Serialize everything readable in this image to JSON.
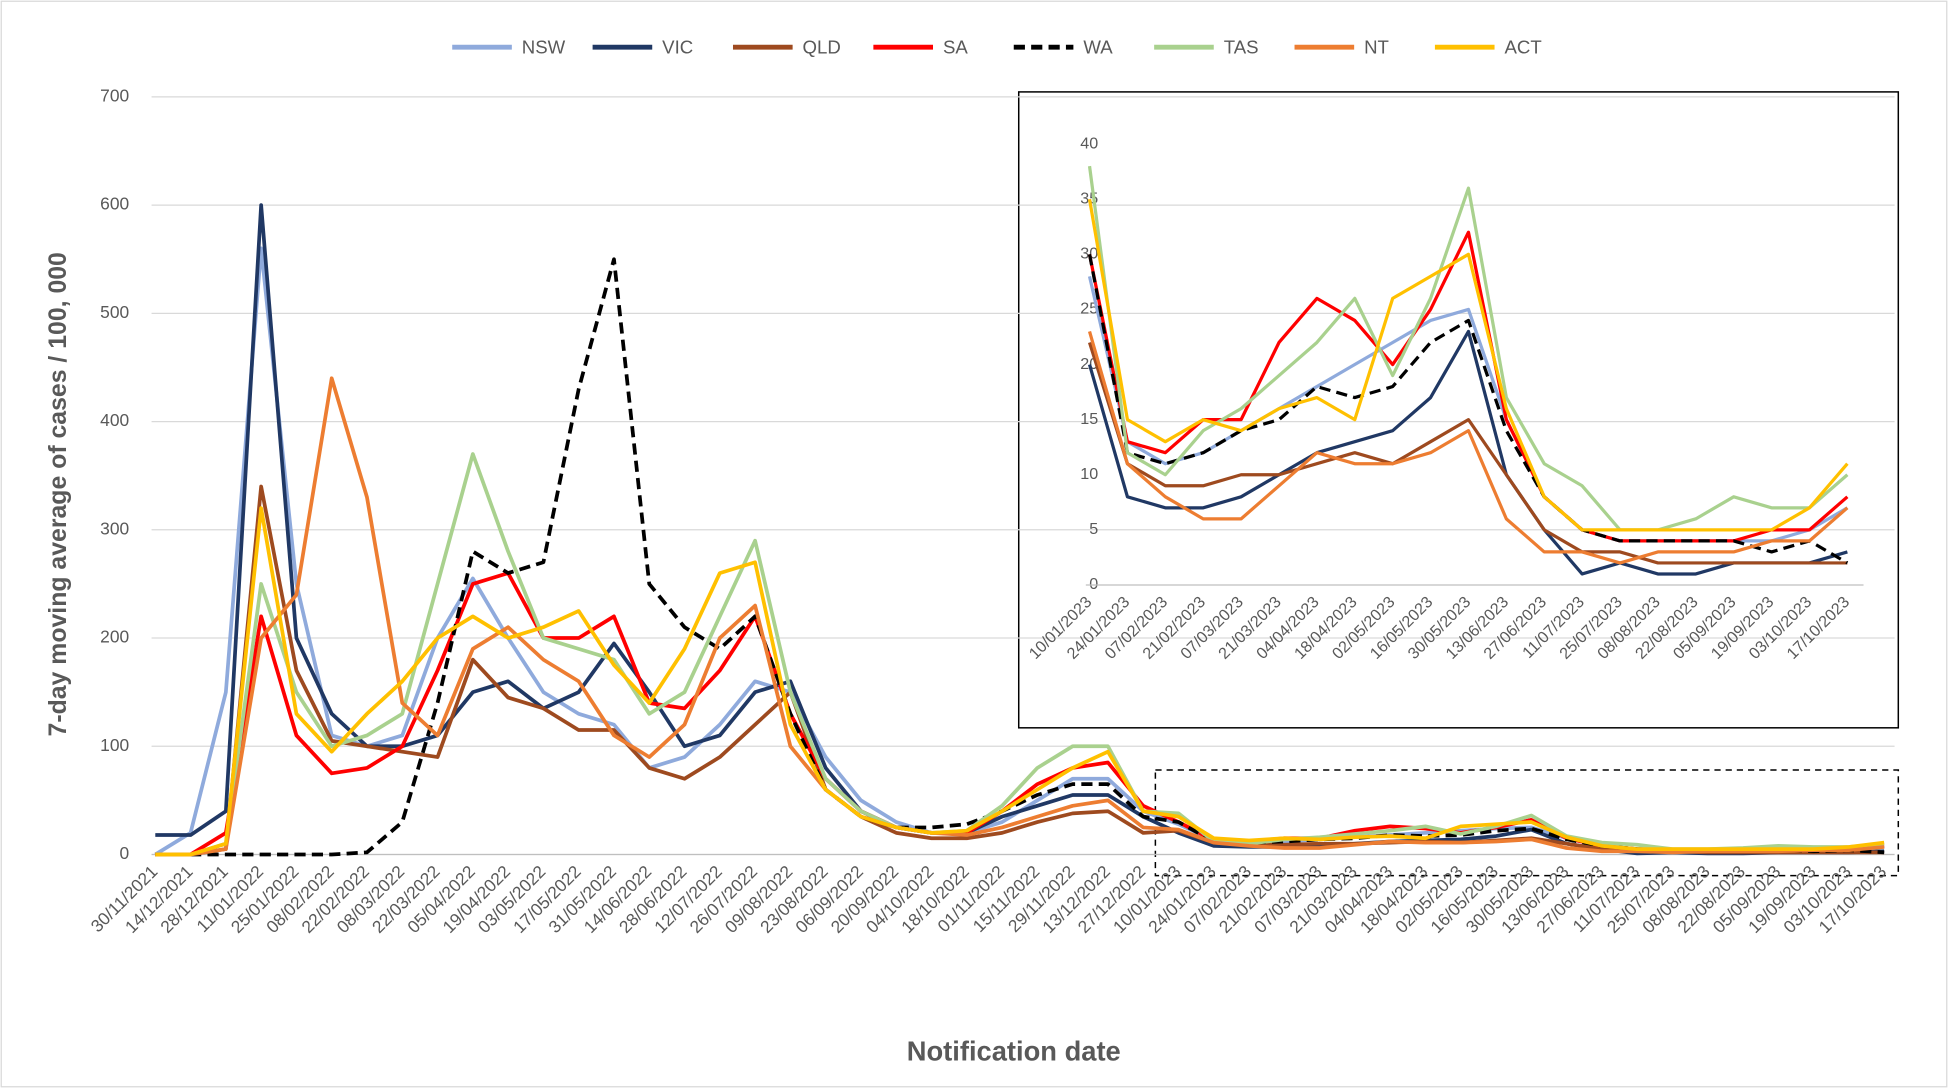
{
  "chart_data": [
    {
      "type": "line",
      "y_label": "7-day moving average of cases / 100, 000",
      "x_label": "Notification date",
      "legend": "top",
      "grid": true,
      "categories": [
        "30/11/2021",
        "14/12/2021",
        "28/12/2021",
        "11/01/2022",
        "25/01/2022",
        "08/02/2022",
        "22/02/2022",
        "08/03/2022",
        "22/03/2022",
        "05/04/2022",
        "19/04/2022",
        "03/05/2022",
        "17/05/2022",
        "31/05/2022",
        "14/06/2022",
        "28/06/2022",
        "12/07/2022",
        "26/07/2022",
        "09/08/2022",
        "23/08/2022",
        "06/09/2022",
        "20/09/2022",
        "04/10/2022",
        "18/10/2022",
        "01/11/2022",
        "15/11/2022",
        "29/11/2022",
        "13/12/2022",
        "27/12/2022",
        "10/01/2023",
        "24/01/2023",
        "07/02/2023",
        "21/02/2023",
        "07/03/2023",
        "21/03/2023",
        "04/04/2023",
        "18/04/2023",
        "02/05/2023",
        "16/05/2023",
        "30/05/2023",
        "13/06/2023",
        "27/06/2023",
        "11/07/2023",
        "25/07/2023",
        "08/08/2023",
        "22/08/2023",
        "05/09/2023",
        "19/09/2023",
        "03/10/2023",
        "17/10/2023"
      ],
      "ylim": [
        0,
        700
      ],
      "yticks": [
        0,
        100,
        200,
        300,
        400,
        500,
        600,
        700
      ],
      "series": [
        {
          "name": "NSW",
          "color": "#8faadc",
          "values": [
            0,
            20,
            150,
            560,
            250,
            110,
            100,
            110,
            200,
            255,
            200,
            150,
            130,
            120,
            80,
            90,
            120,
            160,
            150,
            90,
            50,
            30,
            20,
            20,
            30,
            50,
            70,
            70,
            40,
            28,
            13,
            11,
            12,
            14,
            16,
            18,
            20,
            22,
            24,
            25,
            15,
            8,
            5,
            4,
            4,
            4,
            4,
            4,
            5,
            7
          ]
        },
        {
          "name": "VIC",
          "color": "#203864",
          "values": [
            18,
            18,
            40,
            600,
            200,
            130,
            100,
            100,
            110,
            150,
            160,
            135,
            150,
            195,
            150,
            100,
            110,
            150,
            160,
            80,
            40,
            25,
            20,
            20,
            35,
            45,
            55,
            55,
            35,
            20,
            8,
            7,
            7,
            8,
            10,
            12,
            13,
            14,
            17,
            23,
            10,
            5,
            1,
            2,
            1,
            1,
            2,
            2,
            2,
            3
          ]
        },
        {
          "name": "QLD",
          "color": "#9e4a1f",
          "values": [
            0,
            0,
            5,
            340,
            170,
            105,
            100,
            95,
            90,
            180,
            145,
            135,
            115,
            115,
            80,
            70,
            90,
            120,
            150,
            60,
            35,
            20,
            15,
            15,
            20,
            30,
            38,
            40,
            20,
            22,
            11,
            9,
            9,
            10,
            10,
            11,
            12,
            11,
            13,
            15,
            10,
            5,
            3,
            3,
            2,
            2,
            2,
            2,
            2,
            2
          ]
        },
        {
          "name": "SA",
          "color": "#ff0000",
          "values": [
            0,
            0,
            20,
            220,
            110,
            75,
            80,
            100,
            170,
            250,
            260,
            200,
            200,
            220,
            140,
            135,
            170,
            220,
            130,
            70,
            40,
            25,
            20,
            20,
            40,
            65,
            80,
            85,
            45,
            30,
            13,
            12,
            15,
            15,
            22,
            26,
            24,
            20,
            25,
            32,
            15,
            8,
            5,
            4,
            4,
            4,
            4,
            5,
            5,
            8
          ]
        },
        {
          "name": "WA",
          "color": "#000000",
          "dash": true,
          "values": [
            0,
            0,
            0,
            0,
            0,
            0,
            2,
            30,
            140,
            280,
            260,
            270,
            430,
            550,
            250,
            210,
            190,
            220,
            130,
            60,
            35,
            25,
            25,
            28,
            40,
            55,
            65,
            65,
            35,
            30,
            12,
            11,
            12,
            14,
            15,
            18,
            17,
            18,
            22,
            24,
            14,
            8,
            5,
            4,
            4,
            4,
            4,
            3,
            4,
            2
          ]
        },
        {
          "name": "TAS",
          "color": "#a9d18e",
          "values": [
            0,
            0,
            10,
            250,
            150,
            100,
            110,
            130,
            250,
            370,
            280,
            200,
            190,
            180,
            130,
            150,
            220,
            290,
            150,
            70,
            40,
            25,
            20,
            22,
            45,
            80,
            100,
            100,
            40,
            38,
            12,
            10,
            14,
            16,
            19,
            22,
            26,
            19,
            26,
            36,
            17,
            11,
            9,
            5,
            5,
            6,
            8,
            7,
            7,
            10
          ]
        },
        {
          "name": "NT",
          "color": "#ed7d31",
          "values": [
            0,
            0,
            5,
            200,
            240,
            440,
            330,
            140,
            110,
            190,
            210,
            180,
            160,
            110,
            90,
            120,
            200,
            230,
            100,
            60,
            35,
            25,
            20,
            18,
            25,
            35,
            45,
            50,
            25,
            23,
            11,
            8,
            6,
            6,
            9,
            12,
            11,
            11,
            12,
            14,
            6,
            3,
            3,
            2,
            3,
            3,
            3,
            4,
            4,
            7
          ]
        },
        {
          "name": "ACT",
          "color": "#ffc000",
          "values": [
            0,
            0,
            10,
            320,
            130,
            95,
            130,
            160,
            200,
            220,
            200,
            210,
            225,
            175,
            140,
            190,
            260,
            270,
            120,
            60,
            35,
            25,
            20,
            22,
            40,
            60,
            80,
            95,
            40,
            35,
            15,
            13,
            15,
            14,
            16,
            17,
            15,
            26,
            28,
            30,
            16,
            8,
            5,
            5,
            5,
            5,
            5,
            5,
            7,
            11
          ]
        }
      ]
    },
    {
      "type": "line",
      "grid": false,
      "categories": [
        "10/01/2023",
        "24/01/2023",
        "07/02/2023",
        "21/02/2023",
        "07/03/2023",
        "21/03/2023",
        "04/04/2023",
        "18/04/2023",
        "02/05/2023",
        "16/05/2023",
        "30/05/2023",
        "13/06/2023",
        "27/06/2023",
        "11/07/2023",
        "25/07/2023",
        "08/08/2023",
        "22/08/2023",
        "05/09/2023",
        "19/09/2023",
        "03/10/2023",
        "17/10/2023"
      ],
      "ylim": [
        0,
        40
      ],
      "yticks": [
        0,
        5,
        10,
        15,
        20,
        25,
        30,
        35,
        40
      ],
      "series": [
        {
          "color": "#8faadc",
          "values": [
            28,
            13,
            11,
            12,
            14,
            16,
            18,
            20,
            22,
            24,
            25,
            15,
            8,
            5,
            4,
            4,
            4,
            4,
            4,
            5,
            7
          ]
        },
        {
          "color": "#203864",
          "values": [
            20,
            8,
            7,
            7,
            8,
            10,
            12,
            13,
            14,
            17,
            23,
            10,
            5,
            1,
            2,
            1,
            1,
            2,
            2,
            2,
            3
          ]
        },
        {
          "color": "#9e4a1f",
          "values": [
            22,
            11,
            9,
            9,
            10,
            10,
            11,
            12,
            11,
            13,
            15,
            10,
            5,
            3,
            3,
            2,
            2,
            2,
            2,
            2,
            2
          ]
        },
        {
          "color": "#ff0000",
          "values": [
            30,
            13,
            12,
            15,
            15,
            22,
            26,
            24,
            20,
            25,
            32,
            15,
            8,
            5,
            4,
            4,
            4,
            4,
            5,
            5,
            8
          ]
        },
        {
          "color": "#000000",
          "dash": true,
          "values": [
            30,
            12,
            11,
            12,
            14,
            15,
            18,
            17,
            18,
            22,
            24,
            14,
            8,
            5,
            4,
            4,
            4,
            4,
            3,
            4,
            2
          ]
        },
        {
          "color": "#a9d18e",
          "values": [
            38,
            12,
            10,
            14,
            16,
            19,
            22,
            26,
            19,
            26,
            36,
            17,
            11,
            9,
            5,
            5,
            6,
            8,
            7,
            7,
            10
          ]
        },
        {
          "color": "#ed7d31",
          "values": [
            23,
            11,
            8,
            6,
            6,
            9,
            12,
            11,
            11,
            12,
            14,
            6,
            3,
            3,
            2,
            3,
            3,
            3,
            4,
            4,
            7
          ]
        },
        {
          "color": "#ffc000",
          "values": [
            35,
            15,
            13,
            15,
            14,
            16,
            17,
            15,
            26,
            28,
            30,
            16,
            8,
            5,
            5,
            5,
            5,
            5,
            5,
            7,
            11
          ]
        }
      ]
    }
  ]
}
